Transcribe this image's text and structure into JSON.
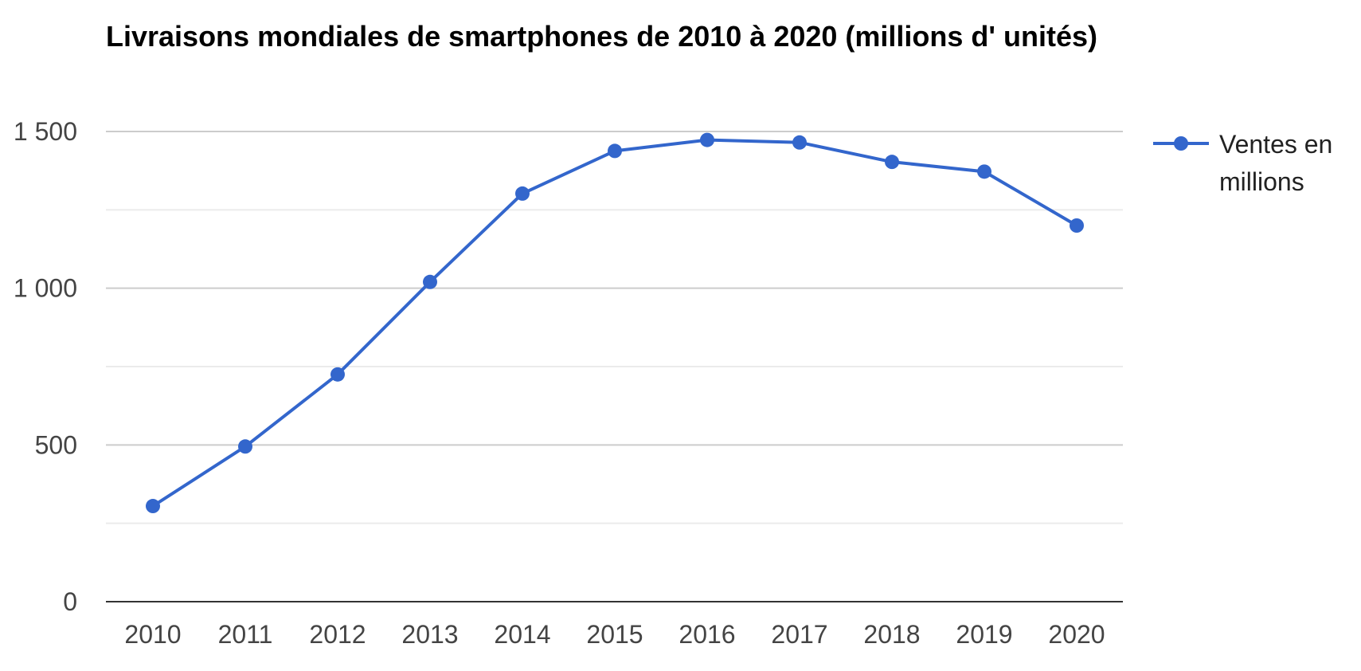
{
  "chart_data": {
    "type": "line",
    "title": "Livraisons mondiales de smartphones de 2010 à 2020 (millions d' unités)",
    "xlabel": "",
    "ylabel": "",
    "categories": [
      "2010",
      "2011",
      "2012",
      "2013",
      "2014",
      "2015",
      "2016",
      "2017",
      "2018",
      "2019",
      "2020"
    ],
    "series": [
      {
        "name": "Ventes en millions",
        "color": "#3366cc",
        "values": [
          305,
          495,
          725,
          1020,
          1302,
          1438,
          1473,
          1465,
          1403,
          1372,
          1200
        ]
      }
    ],
    "ylim": [
      0,
      1500
    ],
    "yticks": [
      0,
      500,
      1000,
      1500
    ],
    "ytick_labels": [
      "0",
      "500",
      "1 000",
      "1 500"
    ],
    "grid": true,
    "minor_grid": true,
    "legend": {
      "position": "right",
      "lines": [
        "Ventes en",
        "millions"
      ]
    },
    "colors": {
      "series": "#3366cc",
      "major_grid": "#cccccc",
      "minor_grid": "#ebebeb",
      "baseline": "#333333"
    }
  }
}
